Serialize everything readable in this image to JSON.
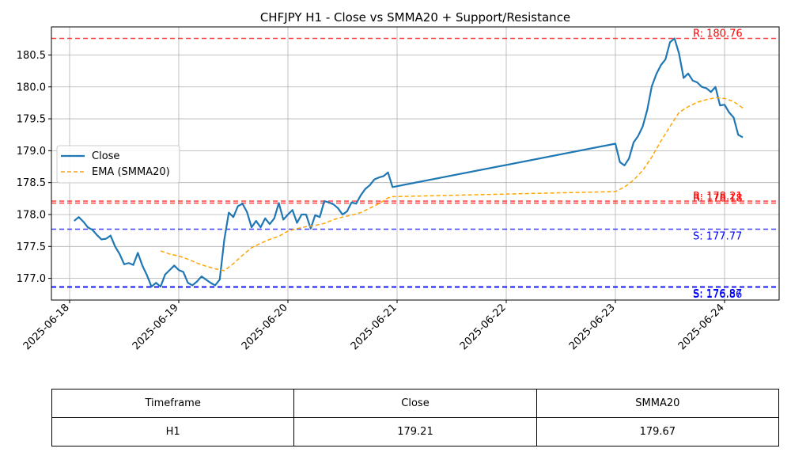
{
  "chart_data": {
    "type": "line",
    "title": "CHFJPY H1 - Close vs SMMA20 + Support/Resistance",
    "xlabel": "",
    "ylabel": "",
    "x_tick_labels": [
      "2025-06-18",
      "2025-06-19",
      "2025-06-20",
      "2025-06-21",
      "2025-06-22",
      "2025-06-23",
      "2025-06-24"
    ],
    "y_tick_labels": [
      "177.0",
      "177.5",
      "178.0",
      "178.5",
      "179.0",
      "179.5",
      "180.0",
      "180.5"
    ],
    "xlim": [
      "2025-06-17 20:00",
      "2025-06-24 12:00"
    ],
    "ylim": [
      176.66,
      180.94
    ],
    "grid": true,
    "legend_position": "center-left",
    "series": [
      {
        "name": "Close",
        "color": "#1f77b4",
        "style": "solid",
        "points": [
          [
            "2025-06-18 01:00",
            177.9
          ],
          [
            "2025-06-18 02:00",
            177.96
          ],
          [
            "2025-06-18 03:00",
            177.89
          ],
          [
            "2025-06-18 04:00",
            177.8
          ],
          [
            "2025-06-18 05:00",
            177.76
          ],
          [
            "2025-06-18 06:00",
            177.68
          ],
          [
            "2025-06-18 07:00",
            177.61
          ],
          [
            "2025-06-18 08:00",
            177.62
          ],
          [
            "2025-06-18 09:00",
            177.67
          ],
          [
            "2025-06-18 10:00",
            177.5
          ],
          [
            "2025-06-18 11:00",
            177.38
          ],
          [
            "2025-06-18 12:00",
            177.22
          ],
          [
            "2025-06-18 13:00",
            177.24
          ],
          [
            "2025-06-18 14:00",
            177.21
          ],
          [
            "2025-06-18 15:00",
            177.4
          ],
          [
            "2025-06-18 16:00",
            177.2
          ],
          [
            "2025-06-18 17:00",
            177.05
          ],
          [
            "2025-06-18 18:00",
            176.87
          ],
          [
            "2025-06-18 19:00",
            176.93
          ],
          [
            "2025-06-18 20:00",
            176.87
          ],
          [
            "2025-06-18 21:00",
            177.06
          ],
          [
            "2025-06-18 22:00",
            177.13
          ],
          [
            "2025-06-18 23:00",
            177.2
          ],
          [
            "2025-06-19 00:00",
            177.13
          ],
          [
            "2025-06-19 01:00",
            177.1
          ],
          [
            "2025-06-19 02:00",
            176.93
          ],
          [
            "2025-06-19 03:00",
            176.89
          ],
          [
            "2025-06-19 04:00",
            176.95
          ],
          [
            "2025-06-19 05:00",
            177.03
          ],
          [
            "2025-06-19 06:00",
            176.98
          ],
          [
            "2025-06-19 07:00",
            176.93
          ],
          [
            "2025-06-19 08:00",
            176.89
          ],
          [
            "2025-06-19 09:00",
            176.98
          ],
          [
            "2025-06-19 10:00",
            177.6
          ],
          [
            "2025-06-19 11:00",
            178.03
          ],
          [
            "2025-06-19 12:00",
            177.96
          ],
          [
            "2025-06-19 13:00",
            178.13
          ],
          [
            "2025-06-19 14:00",
            178.17
          ],
          [
            "2025-06-19 15:00",
            178.04
          ],
          [
            "2025-06-19 16:00",
            177.8
          ],
          [
            "2025-06-19 17:00",
            177.9
          ],
          [
            "2025-06-19 18:00",
            177.8
          ],
          [
            "2025-06-19 19:00",
            177.94
          ],
          [
            "2025-06-19 20:00",
            177.85
          ],
          [
            "2025-06-19 21:00",
            177.94
          ],
          [
            "2025-06-19 22:00",
            178.18
          ],
          [
            "2025-06-19 23:00",
            177.92
          ],
          [
            "2025-06-20 00:00",
            178.0
          ],
          [
            "2025-06-20 01:00",
            178.07
          ],
          [
            "2025-06-20 02:00",
            177.87
          ],
          [
            "2025-06-20 03:00",
            178.0
          ],
          [
            "2025-06-20 04:00",
            178.0
          ],
          [
            "2025-06-20 05:00",
            177.78
          ],
          [
            "2025-06-20 06:00",
            177.99
          ],
          [
            "2025-06-20 07:00",
            177.96
          ],
          [
            "2025-06-20 08:00",
            178.21
          ],
          [
            "2025-06-20 09:00",
            178.19
          ],
          [
            "2025-06-20 10:00",
            178.16
          ],
          [
            "2025-06-20 11:00",
            178.1
          ],
          [
            "2025-06-20 12:00",
            178.0
          ],
          [
            "2025-06-20 13:00",
            178.05
          ],
          [
            "2025-06-20 14:00",
            178.19
          ],
          [
            "2025-06-20 15:00",
            178.17
          ],
          [
            "2025-06-20 16:00",
            178.3
          ],
          [
            "2025-06-20 17:00",
            178.4
          ],
          [
            "2025-06-20 18:00",
            178.46
          ],
          [
            "2025-06-20 19:00",
            178.55
          ],
          [
            "2025-06-20 20:00",
            178.58
          ],
          [
            "2025-06-20 21:00",
            178.6
          ],
          [
            "2025-06-20 22:00",
            178.66
          ],
          [
            "2025-06-20 23:00",
            178.43
          ],
          [
            "2025-06-23 00:00",
            179.11
          ],
          [
            "2025-06-23 01:00",
            178.82
          ],
          [
            "2025-06-23 02:00",
            178.77
          ],
          [
            "2025-06-23 03:00",
            178.88
          ],
          [
            "2025-06-23 04:00",
            179.13
          ],
          [
            "2025-06-23 05:00",
            179.23
          ],
          [
            "2025-06-23 06:00",
            179.38
          ],
          [
            "2025-06-23 07:00",
            179.64
          ],
          [
            "2025-06-23 08:00",
            180.01
          ],
          [
            "2025-06-23 09:00",
            180.2
          ],
          [
            "2025-06-23 10:00",
            180.34
          ],
          [
            "2025-06-23 11:00",
            180.43
          ],
          [
            "2025-06-23 12:00",
            180.7
          ],
          [
            "2025-06-23 13:00",
            180.76
          ],
          [
            "2025-06-23 14:00",
            180.52
          ],
          [
            "2025-06-23 15:00",
            180.14
          ],
          [
            "2025-06-23 16:00",
            180.21
          ],
          [
            "2025-06-23 17:00",
            180.1
          ],
          [
            "2025-06-23 18:00",
            180.07
          ],
          [
            "2025-06-23 19:00",
            180.0
          ],
          [
            "2025-06-23 20:00",
            179.98
          ],
          [
            "2025-06-23 21:00",
            179.92
          ],
          [
            "2025-06-23 22:00",
            180.0
          ],
          [
            "2025-06-23 23:00",
            179.71
          ],
          [
            "2025-06-24 00:00",
            179.72
          ],
          [
            "2025-06-24 01:00",
            179.6
          ],
          [
            "2025-06-24 02:00",
            179.52
          ],
          [
            "2025-06-24 03:00",
            179.25
          ],
          [
            "2025-06-24 04:00",
            179.21
          ]
        ]
      },
      {
        "name": "EMA (SMMA20)",
        "color": "#ffa500",
        "style": "dashed",
        "points": [
          [
            "2025-06-18 20:00",
            177.43
          ],
          [
            "2025-06-18 22:00",
            177.38
          ],
          [
            "2025-06-19 00:00",
            177.35
          ],
          [
            "2025-06-19 02:00",
            177.3
          ],
          [
            "2025-06-19 04:00",
            177.24
          ],
          [
            "2025-06-19 06:00",
            177.19
          ],
          [
            "2025-06-19 08:00",
            177.15
          ],
          [
            "2025-06-19 10:00",
            177.12
          ],
          [
            "2025-06-19 12:00",
            177.23
          ],
          [
            "2025-06-19 14:00",
            177.36
          ],
          [
            "2025-06-19 16:00",
            177.48
          ],
          [
            "2025-06-19 18:00",
            177.55
          ],
          [
            "2025-06-19 20:00",
            177.61
          ],
          [
            "2025-06-19 22:00",
            177.66
          ],
          [
            "2025-06-20 00:00",
            177.74
          ],
          [
            "2025-06-20 02:00",
            177.78
          ],
          [
            "2025-06-20 04:00",
            177.81
          ],
          [
            "2025-06-20 06:00",
            177.83
          ],
          [
            "2025-06-20 08:00",
            177.86
          ],
          [
            "2025-06-20 10:00",
            177.92
          ],
          [
            "2025-06-20 12:00",
            177.96
          ],
          [
            "2025-06-20 14:00",
            177.99
          ],
          [
            "2025-06-20 16:00",
            178.03
          ],
          [
            "2025-06-20 18:00",
            178.1
          ],
          [
            "2025-06-20 20:00",
            178.17
          ],
          [
            "2025-06-20 22:00",
            178.26
          ],
          [
            "2025-06-20 23:00",
            178.28
          ],
          [
            "2025-06-23 00:00",
            178.36
          ],
          [
            "2025-06-23 02:00",
            178.43
          ],
          [
            "2025-06-23 04:00",
            178.54
          ],
          [
            "2025-06-23 06:00",
            178.69
          ],
          [
            "2025-06-23 08:00",
            178.9
          ],
          [
            "2025-06-23 10:00",
            179.15
          ],
          [
            "2025-06-23 12:00",
            179.38
          ],
          [
            "2025-06-23 14:00",
            179.6
          ],
          [
            "2025-06-23 16:00",
            179.69
          ],
          [
            "2025-06-23 18:00",
            179.76
          ],
          [
            "2025-06-23 20:00",
            179.8
          ],
          [
            "2025-06-23 22:00",
            179.83
          ],
          [
            "2025-06-24 00:00",
            179.82
          ],
          [
            "2025-06-24 02:00",
            179.77
          ],
          [
            "2025-06-24 04:00",
            179.67
          ]
        ]
      }
    ],
    "levels": [
      {
        "kind": "resistance",
        "value": 180.76,
        "label": "R: 180.76",
        "color": "#ff0000"
      },
      {
        "kind": "resistance",
        "value": 178.21,
        "label": "R: 178.21",
        "color": "#ff0000"
      },
      {
        "kind": "resistance",
        "value": 178.18,
        "label": "R: 178.18",
        "color": "#ff0000"
      },
      {
        "kind": "support",
        "value": 177.77,
        "label": "S: 177.77",
        "color": "#0000ff"
      },
      {
        "kind": "support",
        "value": 176.87,
        "label": "S: 176.87",
        "color": "#0000ff"
      },
      {
        "kind": "support",
        "value": 176.86,
        "label": "S: 176.86",
        "color": "#0000ff"
      }
    ]
  },
  "table": {
    "headers": [
      "Timeframe",
      "Close",
      "SMMA20"
    ],
    "row": [
      "H1",
      "179.21",
      "179.67"
    ]
  }
}
